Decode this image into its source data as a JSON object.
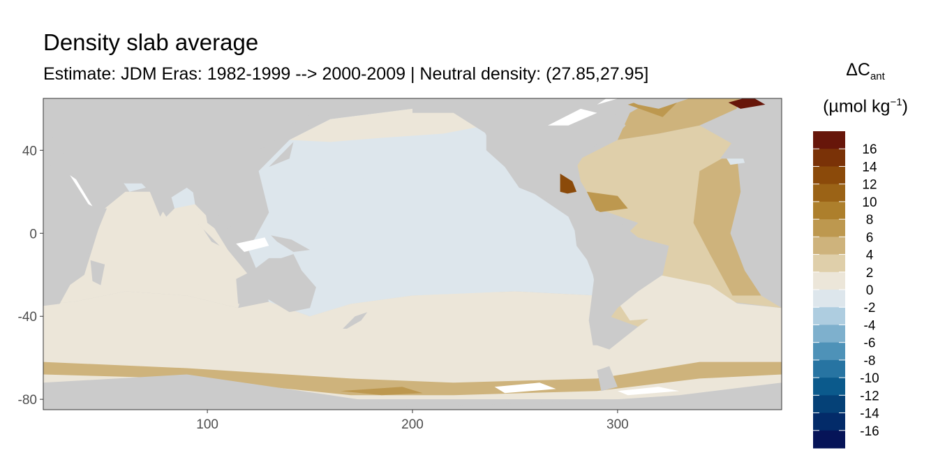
{
  "title": "Density slab average",
  "subtitle": "Estimate: JDM Eras: 1982-1999 --> 2000-2009 | Neutral density: (27.85,27.95]",
  "legend": {
    "symbol": "ΔC",
    "symbol_sub": "ant",
    "unit_prefix": "(µmol kg",
    "unit_sup": "−1",
    "unit_suffix": ")"
  },
  "chart_data": {
    "type": "heatmap",
    "title": "Density slab average",
    "subtitle": "Estimate: JDM Eras: 1982-1999 --> 2000-2009 | Neutral density: (27.85,27.95]",
    "xlabel": "",
    "ylabel": "",
    "xlim": [
      20,
      380
    ],
    "ylim": [
      -85,
      65
    ],
    "x_ticks": [
      100,
      200,
      300
    ],
    "y_ticks": [
      40,
      0,
      -40,
      -80
    ],
    "colorbar": {
      "label": "ΔCant (µmol kg−1)",
      "range": [
        -18,
        18
      ],
      "tick_labels": [
        16,
        14,
        12,
        10,
        8,
        6,
        4,
        2,
        0,
        -2,
        -4,
        -6,
        -8,
        -10,
        -12,
        -14,
        -16
      ],
      "bins": [
        {
          "min": 16,
          "max": 18,
          "color": "#67160a"
        },
        {
          "min": 14,
          "max": 16,
          "color": "#7a3207"
        },
        {
          "min": 12,
          "max": 14,
          "color": "#8b4a0a"
        },
        {
          "min": 10,
          "max": 12,
          "color": "#9b6316"
        },
        {
          "min": 8,
          "max": 10,
          "color": "#ad7f2c"
        },
        {
          "min": 6,
          "max": 8,
          "color": "#bd984f"
        },
        {
          "min": 4,
          "max": 6,
          "color": "#ceb37c"
        },
        {
          "min": 2,
          "max": 4,
          "color": "#dfcfaa"
        },
        {
          "min": 0,
          "max": 2,
          "color": "#ece6d9"
        },
        {
          "min": -2,
          "max": 0,
          "color": "#dde6ec"
        },
        {
          "min": -4,
          "max": -2,
          "color": "#aecde0"
        },
        {
          "min": -6,
          "max": -4,
          "color": "#7eb0cd"
        },
        {
          "min": -8,
          "max": -6,
          "color": "#4e92b8"
        },
        {
          "min": -10,
          "max": -8,
          "color": "#2774a2"
        },
        {
          "min": -12,
          "max": -10,
          "color": "#0b5a8c"
        },
        {
          "min": -14,
          "max": -12,
          "color": "#054177"
        },
        {
          "min": -16,
          "max": -14,
          "color": "#032b69"
        },
        {
          "min": -18,
          "max": -16,
          "color": "#061458"
        }
      ]
    },
    "colors": {
      "land": "#cbcbcb",
      "no_data": "#ffffff",
      "bin_0_2": "#ece6d9",
      "bin_neg2_0": "#dde6ec",
      "bin_2_4": "#dfcfaa",
      "bin_4_6": "#ceb37c",
      "bin_6_8": "#bd984f",
      "bin_12_14": "#8b4a0a",
      "bin_16_18": "#67160a"
    }
  }
}
